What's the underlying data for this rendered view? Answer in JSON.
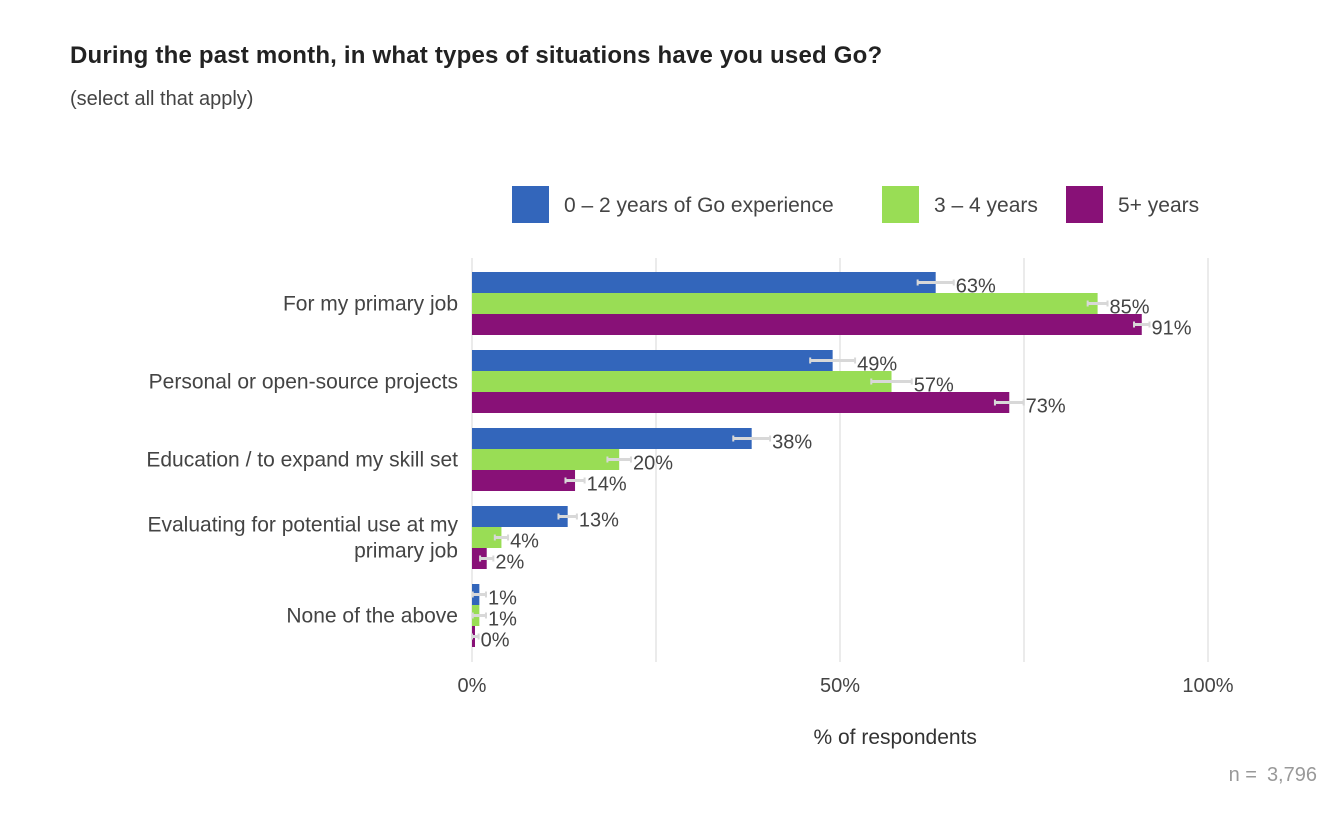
{
  "title": "During the past month, in what types of situations have you used Go?",
  "subtitle": "(select all that apply)",
  "n_label": "n =",
  "n_value": "3,796",
  "chart_data": {
    "type": "bar",
    "orientation": "horizontal",
    "categories": [
      [
        "For my primary job"
      ],
      [
        "Personal or open-source projects"
      ],
      [
        "Education / to expand my skill set"
      ],
      [
        "Evaluating for potential use at my",
        "primary job"
      ],
      [
        "None of the above"
      ]
    ],
    "series": [
      {
        "name": "0 – 2 years of Go experience",
        "color": "#3366bb",
        "values": [
          63,
          49,
          38,
          13,
          1
        ],
        "labels": [
          "63%",
          "49%",
          "38%",
          "13%",
          "1%"
        ]
      },
      {
        "name": "3 – 4 years",
        "color": "#99dd55",
        "values": [
          85,
          57,
          20,
          4,
          1
        ],
        "labels": [
          "85%",
          "57%",
          "20%",
          "4%",
          "1%"
        ]
      },
      {
        "name": "5+ years",
        "color": "#881177",
        "values": [
          91,
          73,
          14,
          2,
          0
        ],
        "labels": [
          "91%",
          "73%",
          "14%",
          "2%",
          "0%"
        ]
      }
    ],
    "xlabel": "% of respondents",
    "xlim": [
      0,
      100
    ],
    "xticks": [
      0,
      50,
      100
    ],
    "xtick_labels": [
      "0%",
      "50%",
      "100%"
    ],
    "grid": true,
    "error_bars": true,
    "legend_position": "top-right"
  }
}
